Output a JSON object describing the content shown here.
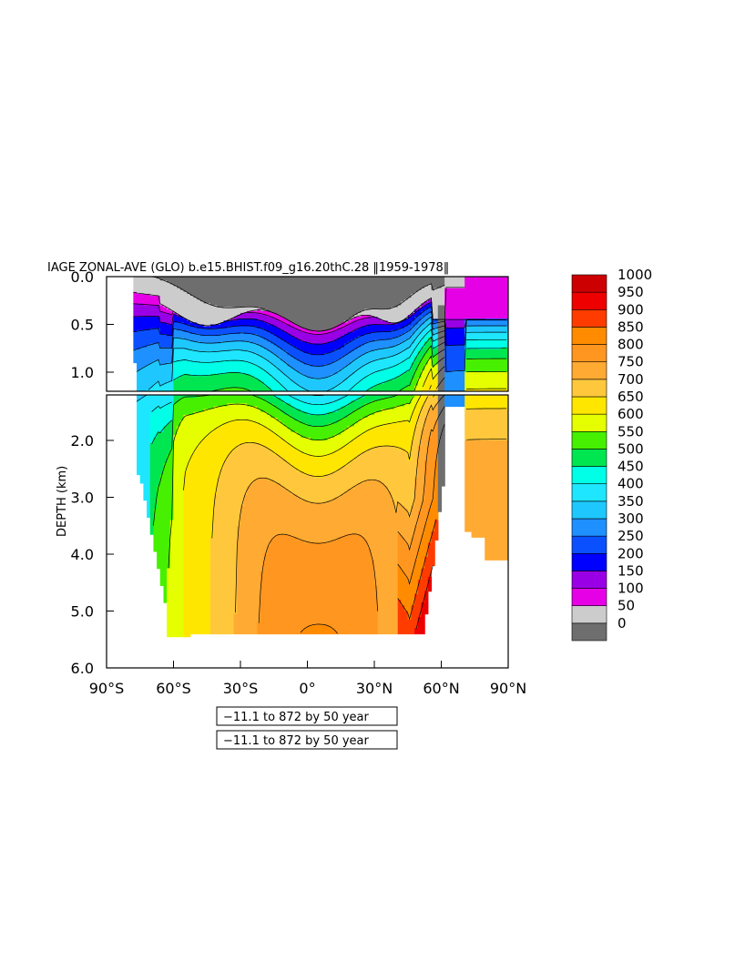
{
  "chart_data": {
    "type": "heatmap",
    "title": "IAGE ZONAL-AVE (GLO) b.e15.BHIST.f09_g16.20thC.28 ‖1959-1978‖",
    "ylabel": "DEPTH (km)",
    "x_ticks": [
      "90°S",
      "60°S",
      "30°S",
      "0°",
      "30°N",
      "60°N",
      "90°N"
    ],
    "x_tick_values": [
      -90,
      -60,
      -30,
      0,
      30,
      60,
      90
    ],
    "xlim": [
      -90,
      90
    ],
    "upper_panel": {
      "ylim": [
        0.0,
        1.2
      ],
      "y_ticks": [
        "0.0",
        "0.5",
        "1.0"
      ],
      "y_tick_values": [
        0.0,
        0.5,
        1.0
      ]
    },
    "lower_panel": {
      "ylim": [
        1.2,
        6.0
      ],
      "y_ticks": [
        "2.0",
        "3.0",
        "4.0",
        "5.0",
        "6.0"
      ],
      "y_tick_values": [
        2.0,
        3.0,
        4.0,
        5.0,
        6.0
      ]
    },
    "colorbar": {
      "labels": [
        "1000",
        "950",
        "900",
        "850",
        "800",
        "750",
        "700",
        "650",
        "600",
        "550",
        "500",
        "450",
        "400",
        "350",
        "300",
        "250",
        "200",
        "150",
        "100",
        "50",
        "0"
      ],
      "levels": [
        0,
        50,
        100,
        150,
        200,
        250,
        300,
        350,
        400,
        450,
        500,
        550,
        600,
        650,
        700,
        750,
        800,
        850,
        900,
        950,
        1000
      ],
      "colors": [
        "#6e6e6e",
        "#cccccc",
        "#e600e6",
        "#9900e6",
        "#0000ff",
        "#0a50ff",
        "#1e90ff",
        "#1ec8ff",
        "#1ee6ff",
        "#00ffe6",
        "#00e650",
        "#46f000",
        "#e6ff00",
        "#ffe600",
        "#ffc83c",
        "#ffaa32",
        "#ff9620",
        "#ff8c00",
        "#ff3c00",
        "#ee0000",
        "#cc0000"
      ]
    },
    "range_notes": [
      "−11.1 to 872 by 50 year",
      "−11.1 to 872 by 50 year"
    ]
  }
}
